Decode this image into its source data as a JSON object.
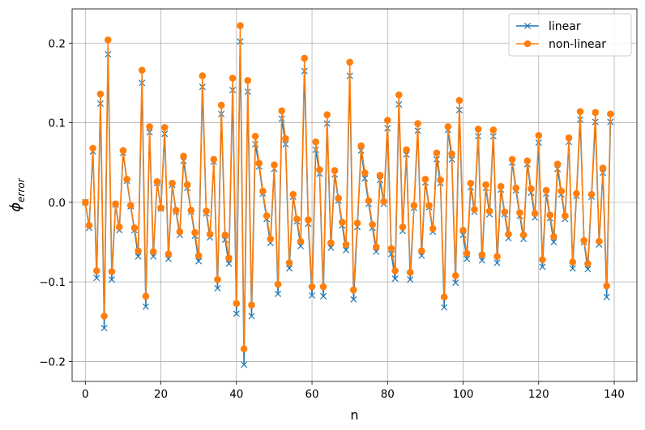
{
  "chart_data": {
    "type": "line",
    "xlabel": "n",
    "ylabel_main": "ϕ",
    "ylabel_sub": "error",
    "xlim": [
      -3.5,
      146
    ],
    "ylim": [
      -0.225,
      0.243
    ],
    "xticks": [
      0,
      20,
      40,
      60,
      80,
      100,
      120,
      140
    ],
    "yticks": [
      -0.2,
      -0.1,
      0.0,
      0.1,
      0.2
    ],
    "ytick_labels": [
      "−0.2",
      "−0.1",
      "0.0",
      "0.1",
      "0.2"
    ],
    "grid": true,
    "legend_position": "top-right",
    "x": [
      0,
      1,
      2,
      3,
      4,
      5,
      6,
      7,
      8,
      9,
      10,
      11,
      12,
      13,
      14,
      15,
      16,
      17,
      18,
      19,
      20,
      21,
      22,
      23,
      24,
      25,
      26,
      27,
      28,
      29,
      30,
      31,
      32,
      33,
      34,
      35,
      36,
      37,
      38,
      39,
      40,
      41,
      42,
      43,
      44,
      45,
      46,
      47,
      48,
      49,
      50,
      51,
      52,
      53,
      54,
      55,
      56,
      57,
      58,
      59,
      60,
      61,
      62,
      63,
      64,
      65,
      66,
      67,
      68,
      69,
      70,
      71,
      72,
      73,
      74,
      75,
      76,
      77,
      78,
      79,
      80,
      81,
      82,
      83,
      84,
      85,
      86,
      87,
      88,
      89,
      90,
      91,
      92,
      93,
      94,
      95,
      96,
      97,
      98,
      99,
      100,
      101,
      102,
      103,
      104,
      105,
      106,
      107,
      108,
      109,
      110,
      111,
      112,
      113,
      114,
      115,
      116,
      117,
      118,
      119,
      120,
      121,
      122,
      123,
      124,
      125,
      126,
      127,
      128,
      129,
      130,
      131,
      132,
      133,
      134,
      135,
      136,
      137,
      138,
      139
    ],
    "series": [
      {
        "name": "linear",
        "color": "#1f77b4",
        "marker": "x",
        "values": [
          0.0,
          -0.032,
          0.064,
          -0.095,
          0.124,
          -0.158,
          0.186,
          -0.097,
          -0.003,
          -0.035,
          0.062,
          0.027,
          -0.005,
          -0.035,
          -0.068,
          0.15,
          -0.131,
          0.088,
          -0.068,
          0.024,
          -0.008,
          0.086,
          -0.071,
          0.022,
          -0.012,
          -0.041,
          0.052,
          0.018,
          -0.012,
          -0.042,
          -0.074,
          0.145,
          -0.014,
          -0.044,
          0.051,
          -0.108,
          0.111,
          -0.047,
          -0.077,
          0.141,
          -0.14,
          0.202,
          -0.204,
          0.139,
          -0.143,
          0.073,
          0.045,
          0.011,
          -0.021,
          -0.051,
          0.042,
          -0.115,
          0.105,
          0.073,
          -0.083,
          0.007,
          -0.024,
          -0.055,
          0.165,
          -0.027,
          -0.117,
          0.066,
          0.036,
          -0.118,
          0.099,
          -0.057,
          0.035,
          0.002,
          -0.029,
          -0.06,
          0.159,
          -0.122,
          -0.031,
          0.065,
          0.03,
          -0.002,
          -0.032,
          -0.062,
          0.028,
          -0.002,
          0.093,
          -0.065,
          -0.096,
          0.123,
          -0.036,
          0.06,
          -0.097,
          -0.007,
          0.09,
          -0.067,
          0.025,
          -0.006,
          -0.037,
          0.054,
          0.024,
          -0.132,
          0.091,
          0.054,
          -0.101,
          0.116,
          -0.041,
          -0.071,
          0.019,
          -0.012,
          0.083,
          -0.073,
          0.018,
          -0.015,
          0.083,
          -0.076,
          0.016,
          -0.015,
          -0.045,
          0.05,
          0.015,
          -0.017,
          -0.046,
          0.048,
          0.012,
          -0.019,
          0.075,
          -0.081,
          0.011,
          -0.02,
          -0.05,
          0.042,
          0.01,
          -0.021,
          0.076,
          -0.083,
          0.008,
          0.104,
          -0.05,
          -0.084,
          0.007,
          0.101,
          -0.053,
          0.037,
          -0.119,
          0.101
        ]
      },
      {
        "name": "non-linear",
        "color": "#ff7f0e",
        "marker": "o",
        "values": [
          0.0,
          -0.029,
          0.068,
          -0.086,
          0.136,
          -0.143,
          0.204,
          -0.087,
          -0.002,
          -0.031,
          0.065,
          0.029,
          -0.004,
          -0.032,
          -0.061,
          0.166,
          -0.118,
          0.095,
          -0.062,
          0.026,
          -0.007,
          0.094,
          -0.065,
          0.024,
          -0.01,
          -0.037,
          0.058,
          0.022,
          -0.01,
          -0.038,
          -0.067,
          0.159,
          -0.011,
          -0.04,
          0.054,
          -0.097,
          0.122,
          -0.041,
          -0.07,
          0.156,
          -0.127,
          0.222,
          -0.184,
          0.153,
          -0.129,
          0.083,
          0.049,
          0.014,
          -0.017,
          -0.046,
          0.047,
          -0.103,
          0.115,
          0.08,
          -0.076,
          0.01,
          -0.021,
          -0.049,
          0.181,
          -0.022,
          -0.106,
          0.076,
          0.041,
          -0.106,
          0.11,
          -0.051,
          0.04,
          0.005,
          -0.025,
          -0.053,
          0.176,
          -0.11,
          -0.026,
          0.071,
          0.037,
          0.002,
          -0.028,
          -0.056,
          0.034,
          0.001,
          0.103,
          -0.058,
          -0.086,
          0.135,
          -0.031,
          0.066,
          -0.088,
          -0.004,
          0.099,
          -0.061,
          0.029,
          -0.004,
          -0.033,
          0.062,
          0.028,
          -0.119,
          0.095,
          0.061,
          -0.092,
          0.128,
          -0.035,
          -0.064,
          0.024,
          -0.009,
          0.092,
          -0.066,
          0.022,
          -0.011,
          0.091,
          -0.068,
          0.02,
          -0.012,
          -0.04,
          0.054,
          0.018,
          -0.013,
          -0.041,
          0.052,
          0.017,
          -0.014,
          0.084,
          -0.072,
          0.015,
          -0.016,
          -0.043,
          0.048,
          0.014,
          -0.017,
          0.081,
          -0.075,
          0.011,
          0.114,
          -0.048,
          -0.077,
          0.01,
          0.113,
          -0.049,
          0.043,
          -0.105,
          0.111
        ]
      }
    ]
  }
}
